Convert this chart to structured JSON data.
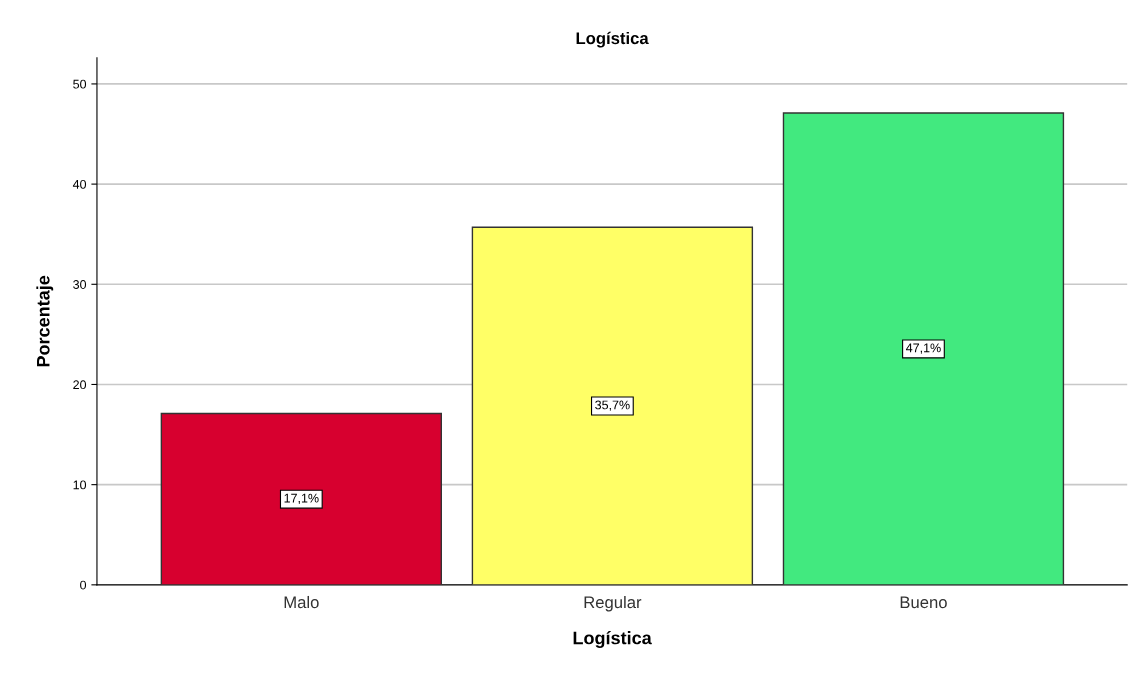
{
  "chart_data": {
    "type": "bar",
    "title": "Logística",
    "xlabel": "Logística",
    "ylabel": "Porcentaje",
    "categories": [
      "Malo",
      "Regular",
      "Bueno"
    ],
    "values": [
      17.1,
      35.7,
      47.1
    ],
    "colors": [
      "#d7002f",
      "#ffff66",
      "#42e97f"
    ],
    "value_labels": [
      "17,1%",
      "35,7%",
      "47,1%"
    ],
    "ylim": [
      0,
      52.6
    ],
    "yticks": [
      0,
      10,
      20,
      30,
      40,
      50
    ],
    "grid": "y",
    "legend": false
  }
}
